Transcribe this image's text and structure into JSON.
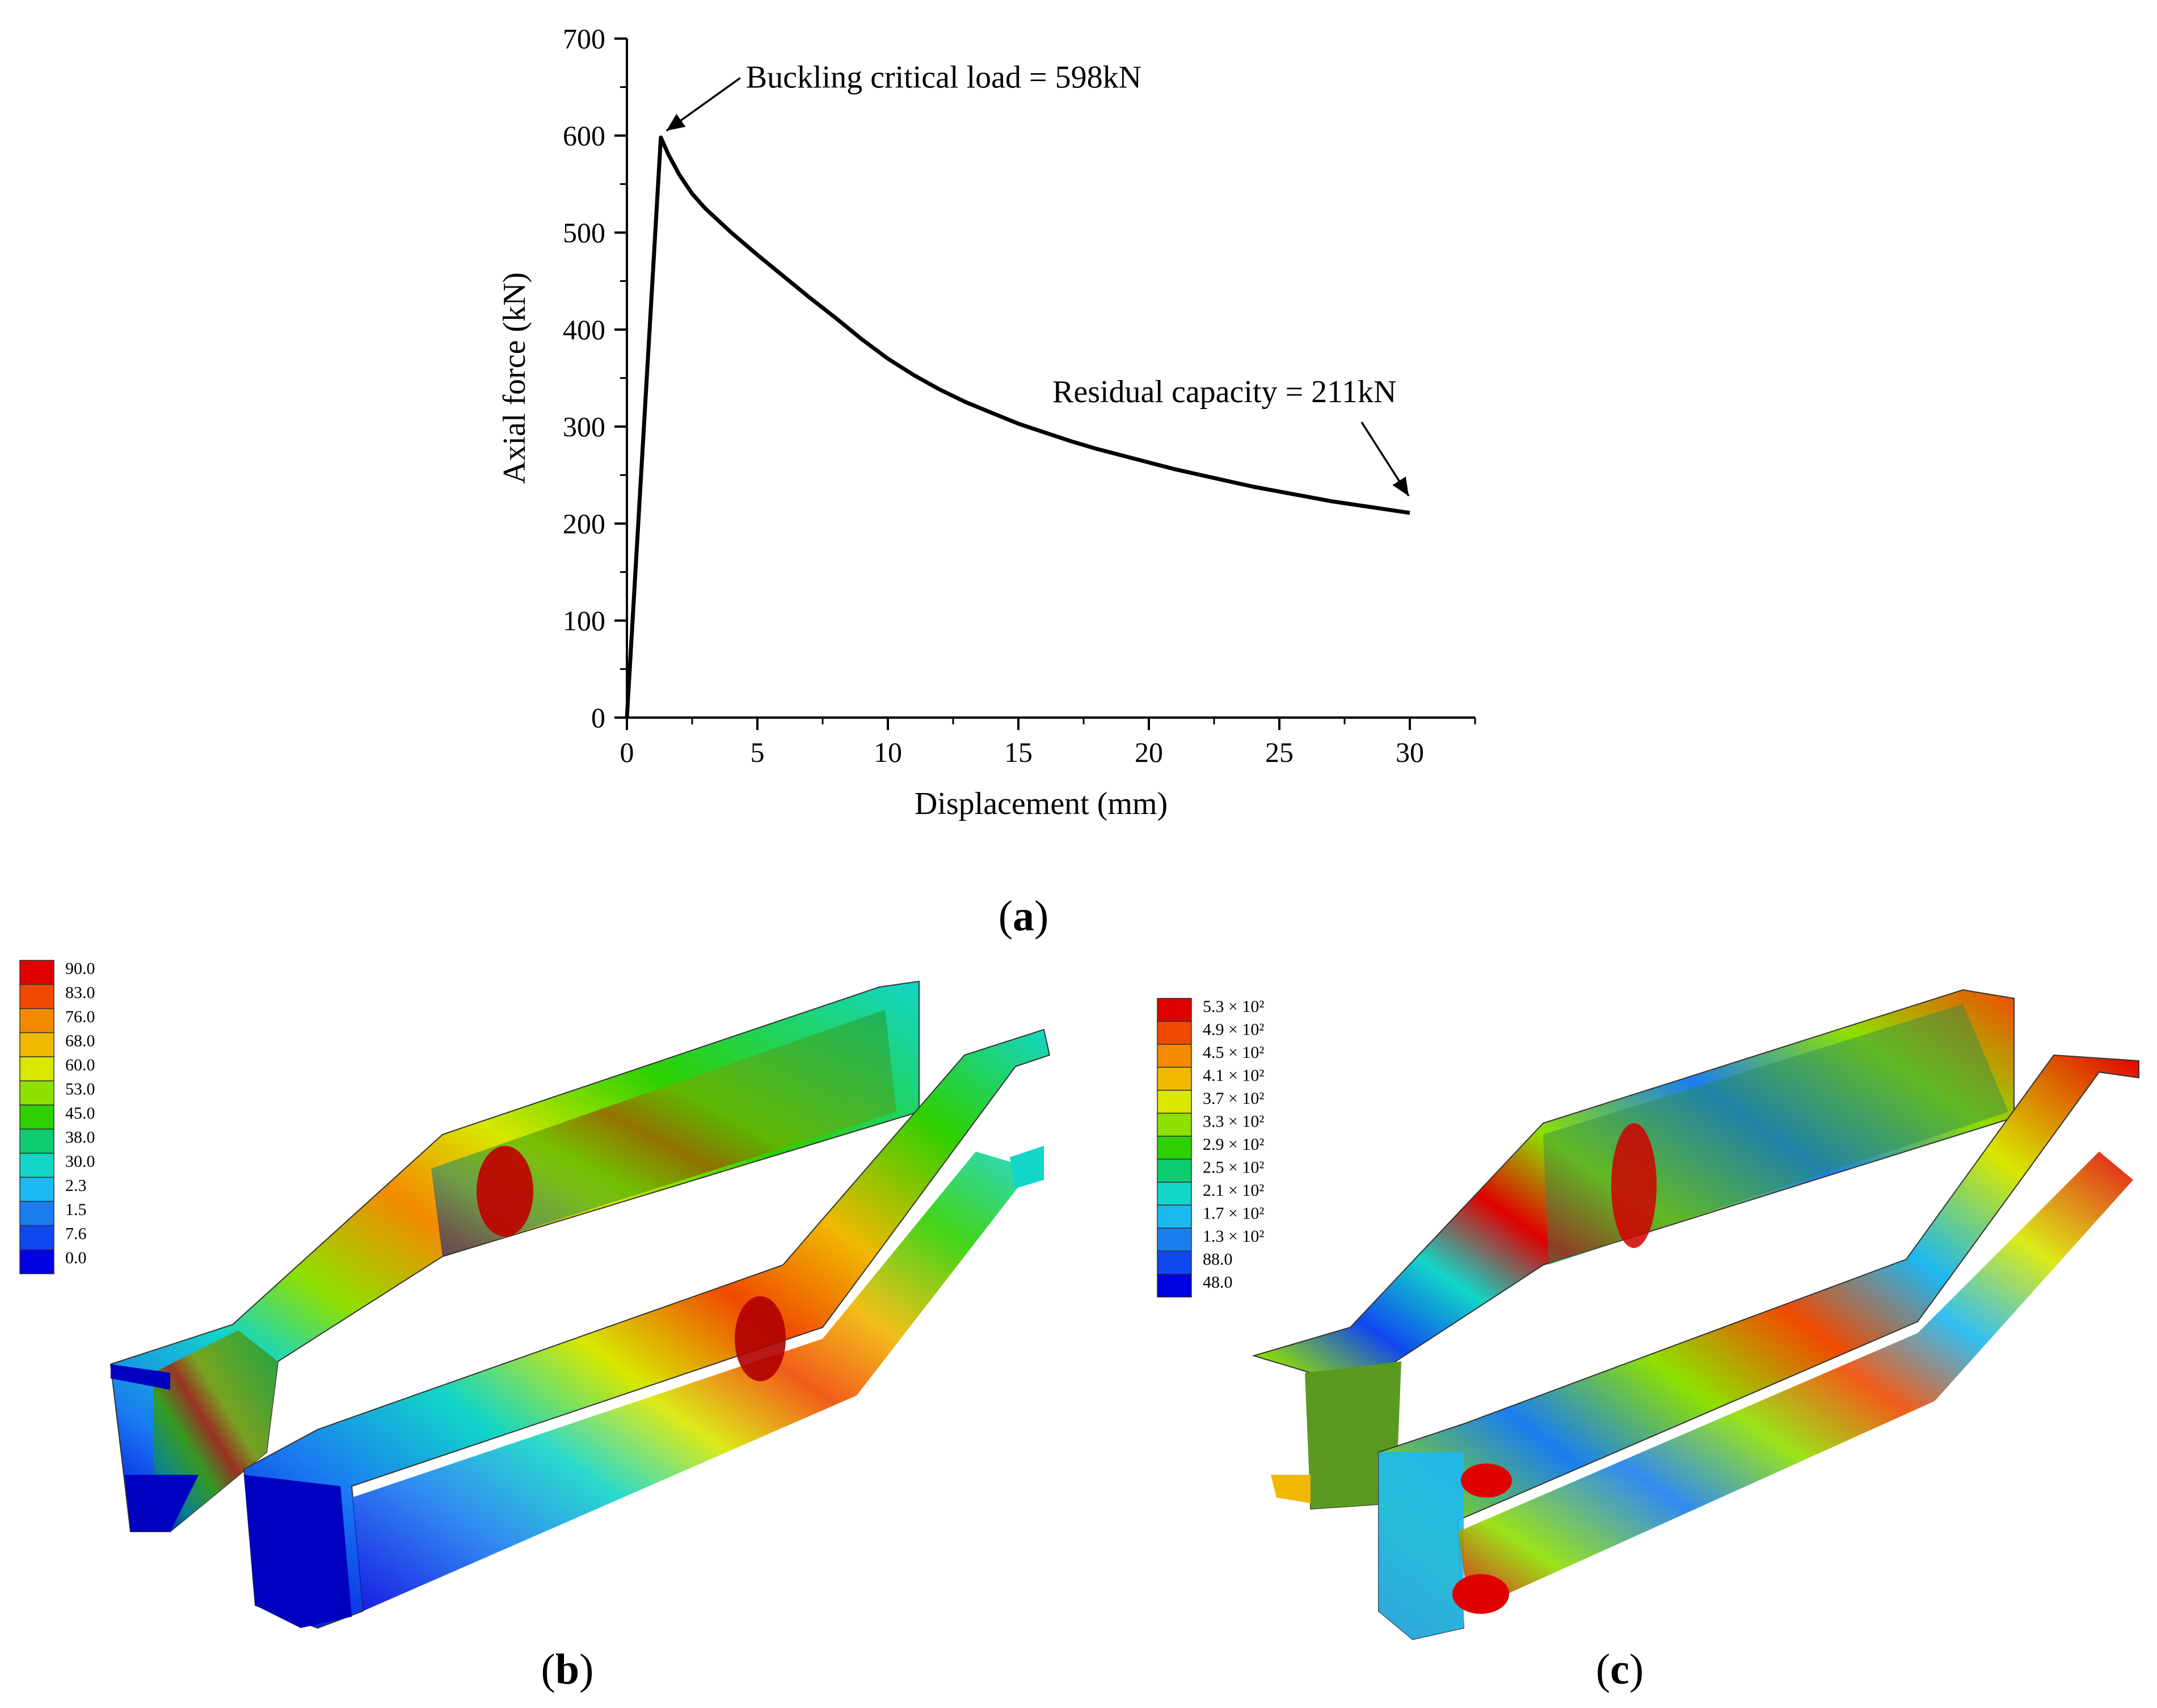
{
  "chart_data": {
    "type": "line",
    "xlabel": "Displacement (mm)",
    "ylabel": "Axial force (kN)",
    "xlim": [
      0,
      32.5
    ],
    "ylim": [
      0,
      700
    ],
    "xticks": [
      0,
      5,
      10,
      15,
      20,
      25,
      30
    ],
    "yticks": [
      0,
      100,
      200,
      300,
      400,
      500,
      600,
      700
    ],
    "grid": false,
    "series": [
      {
        "x": [
          0,
          1.3,
          1.6,
          2.0,
          2.5,
          3.0,
          4.0,
          5.0,
          6.0,
          7.0,
          8.0,
          9.0,
          10.0,
          11.0,
          12.0,
          13.0,
          14.0,
          15.0,
          16.0,
          17.0,
          18.0,
          19.0,
          20.0,
          21.0,
          22.0,
          23.0,
          24.0,
          25.0,
          26.0,
          27.0,
          28.0,
          29.0,
          30.0
        ],
        "y": [
          0,
          598,
          580,
          560,
          540,
          525,
          500,
          477,
          455,
          433,
          412,
          390,
          370,
          353,
          338,
          325,
          314,
          303,
          294,
          285,
          277,
          270,
          263,
          256,
          250,
          244,
          238,
          233,
          228,
          223,
          219,
          215,
          211
        ]
      }
    ],
    "annotations": [
      {
        "text": "Buckling critical load = 598kN",
        "x": 1.3,
        "y": 598
      },
      {
        "text": "Residual capacity = 211kN",
        "x": 30,
        "y": 211
      }
    ]
  },
  "panels": {
    "a": "a",
    "b": "b",
    "c": "c"
  },
  "legend_b": {
    "labels": [
      "90.0",
      "83.0",
      "76.0",
      "68.0",
      "60.0",
      "53.0",
      "45.0",
      "38.0",
      "30.0",
      "2.3",
      "1.5",
      "7.6",
      "0.0"
    ],
    "colors": [
      "#e00000",
      "#f04a00",
      "#f38a00",
      "#f0b800",
      "#d8e800",
      "#8fe000",
      "#2dd000",
      "#10cc70",
      "#12d6c8",
      "#1cb8f2",
      "#1a7ef0",
      "#1048f0",
      "#0000e0"
    ]
  },
  "legend_c": {
    "labels": [
      "5.3 × 10²",
      "4.9 × 10²",
      "4.5 × 10²",
      "4.1 × 10²",
      "3.7 × 10²",
      "3.3 × 10²",
      "2.9 × 10²",
      "2.5 × 10²",
      "2.1 × 10²",
      "1.7 × 10²",
      "1.3 × 10²",
      "88.0",
      "48.0"
    ],
    "colors": [
      "#e00000",
      "#f04a00",
      "#f38a00",
      "#f0b800",
      "#d8e800",
      "#8fe000",
      "#2dd000",
      "#10cc70",
      "#12d6c8",
      "#1cb8f2",
      "#1a7ef0",
      "#1048f0",
      "#0000e0"
    ]
  }
}
